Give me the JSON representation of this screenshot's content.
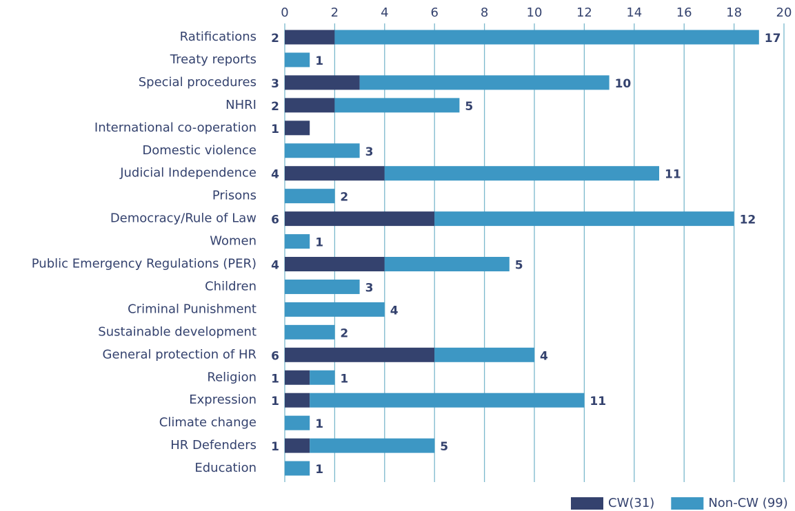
{
  "chart_data": {
    "type": "stacked_barh",
    "categories": [
      "Ratifications",
      "Treaty reports",
      "Special procedures",
      "NHRI",
      "International co-operation",
      "Domestic violence",
      "Judicial Independence",
      "Prisons",
      "Democracy/Rule of Law",
      "Women",
      "Public Emergency Regulations (PER)",
      "Children",
      "Criminal Punishment",
      "Sustainable development",
      "General protection of HR",
      "Religion",
      "Expression",
      "Climate change",
      "HR Defenders",
      "Education"
    ],
    "series": [
      {
        "name": "CW(31)",
        "color": "#34426e",
        "values": [
          2,
          null,
          3,
          2,
          1,
          null,
          4,
          null,
          6,
          null,
          4,
          null,
          null,
          null,
          6,
          1,
          1,
          null,
          1,
          null
        ]
      },
      {
        "name": "Non-CW (99)",
        "color": "#3d97c4",
        "values": [
          17,
          1,
          10,
          5,
          null,
          3,
          11,
          2,
          12,
          1,
          5,
          3,
          4,
          2,
          4,
          1,
          11,
          1,
          5,
          1
        ]
      }
    ],
    "xlim": [
      0,
      20
    ],
    "xticks": [
      0,
      2,
      4,
      6,
      8,
      10,
      12,
      14,
      16,
      18,
      20
    ],
    "grid": true,
    "legend": "bottom-right"
  }
}
